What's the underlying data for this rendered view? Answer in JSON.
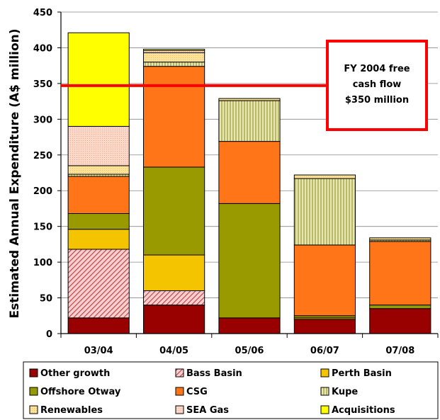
{
  "chart_data": {
    "type": "bar",
    "stacked": true,
    "ylabel": "Estimated Annual Expenditure (A$ million)",
    "ylim": [
      0,
      450
    ],
    "yticks": [
      0,
      50,
      100,
      150,
      200,
      250,
      300,
      350,
      400,
      450
    ],
    "grid": true,
    "legend_position": "bottom",
    "categories": [
      "03/04",
      "04/05",
      "05/06",
      "06/07",
      "07/08"
    ],
    "series": [
      {
        "name": "Other growth",
        "color": "#990000",
        "pattern": "solid",
        "values": [
          22,
          40,
          22,
          20,
          35
        ]
      },
      {
        "name": "Bass Basin",
        "color": "#cc6666",
        "pattern": "hatch",
        "values": [
          96,
          20,
          0,
          0,
          0
        ]
      },
      {
        "name": "Perth Basin",
        "color": "#f5c400",
        "pattern": "solid",
        "values": [
          28,
          50,
          0,
          2,
          0
        ]
      },
      {
        "name": "Offshore Otway",
        "color": "#999900",
        "pattern": "solid",
        "values": [
          22,
          123,
          160,
          3,
          5
        ]
      },
      {
        "name": "CSG",
        "color": "#ff7518",
        "pattern": "solid",
        "values": [
          52,
          141,
          87,
          99,
          89
        ]
      },
      {
        "name": "Kupe",
        "color": "#c8c870",
        "pattern": "lines",
        "values": [
          3,
          6,
          57,
          93,
          2
        ]
      },
      {
        "name": "Renewables",
        "color": "#fde29a",
        "pattern": "dots",
        "values": [
          12,
          13,
          3,
          5,
          3
        ]
      },
      {
        "name": "SEA Gas",
        "color": "#fbd5c2",
        "pattern": "dots",
        "values": [
          55,
          3,
          0,
          0,
          0
        ]
      },
      {
        "name": "Acquisitions",
        "color": "#ffff00",
        "pattern": "solid",
        "values": [
          131,
          2,
          0,
          0,
          0
        ]
      }
    ],
    "reference_line": {
      "y": 347,
      "color": "#ff0000"
    },
    "annotation": {
      "lines": [
        "FY 2004 free",
        "cash flow",
        "$350 million"
      ]
    }
  }
}
